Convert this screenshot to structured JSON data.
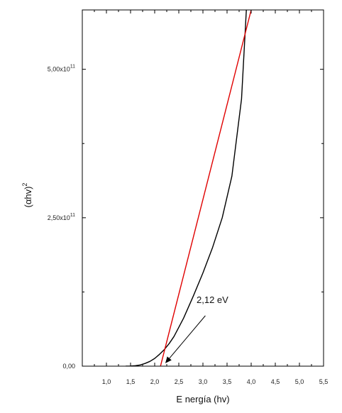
{
  "chart_data": {
    "type": "line",
    "xlabel": "E nergía (hv)",
    "ylabel_main": "(αhv)",
    "ylabel_sup": "2",
    "xlim": [
      0.5,
      5.5
    ],
    "ylim": [
      0,
      600000000000.0
    ],
    "x_ticks": [
      {
        "value": 1.0,
        "label": "1,0"
      },
      {
        "value": 1.5,
        "label": "1,5"
      },
      {
        "value": 2.0,
        "label": "2,0"
      },
      {
        "value": 2.5,
        "label": "2,5"
      },
      {
        "value": 3.0,
        "label": "3,0"
      },
      {
        "value": 3.5,
        "label": "3,5"
      },
      {
        "value": 4.0,
        "label": "4,0"
      },
      {
        "value": 4.5,
        "label": "4,5"
      },
      {
        "value": 5.0,
        "label": "5,0"
      },
      {
        "value": 5.5,
        "label": "5,5"
      }
    ],
    "y_ticks": [
      {
        "value": 0,
        "mantissa": "0,00",
        "exponent": ""
      },
      {
        "value": 250000000000.0,
        "mantissa": "2,50x10",
        "exponent": "11"
      },
      {
        "value": 500000000000.0,
        "mantissa": "5,00x10",
        "exponent": "11"
      }
    ],
    "series": [
      {
        "color": "#000000",
        "x": [
          1.4,
          1.5,
          1.6,
          1.7,
          1.8,
          1.9,
          2.0,
          2.1,
          2.2,
          2.3,
          2.4,
          2.6,
          2.8,
          3.0,
          3.2,
          3.4,
          3.6,
          3.8,
          3.9
        ],
        "y": [
          0,
          200000000.0,
          800000000.0,
          2000000000.0,
          4500000000.0,
          8000000000.0,
          13000000000.0,
          20000000000.0,
          28000000000.0,
          38000000000.0,
          50000000000.0,
          81000000000.0,
          118000000000.0,
          157000000000.0,
          200000000000.0,
          250000000000.0,
          320000000000.0,
          450000000000.0,
          600000000000.0
        ]
      },
      {
        "color": "#e00000",
        "x": [
          2.12,
          4.0
        ],
        "y": [
          0,
          600000000000.0
        ]
      }
    ],
    "annotation": {
      "text": "2,12 eV",
      "arrow_from": [
        3.05,
        85000000000.0
      ],
      "arrow_to": [
        2.22,
        5000000000.0
      ]
    }
  }
}
